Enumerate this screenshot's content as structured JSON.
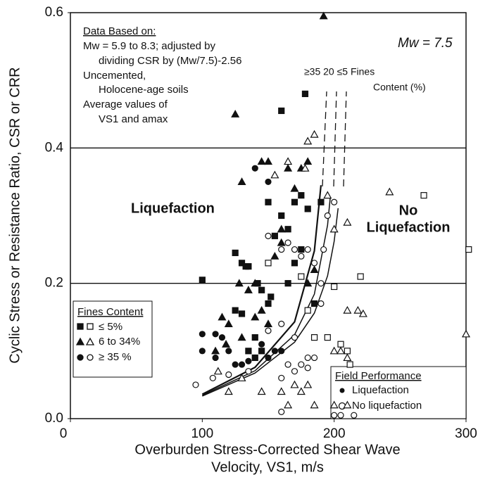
{
  "chart_data": {
    "type": "scatter",
    "x_label": [
      "Overburden Stress-Corrected Shear Wave",
      "Velocity, VS1, m/s"
    ],
    "y_label": "Cyclic Stress or Resistance Ratio, CSR or CRR",
    "xlim": [
      0,
      300
    ],
    "ylim": [
      0,
      0.6
    ],
    "xticks": [
      0,
      100,
      200,
      300
    ],
    "yticks": [
      {
        "value": 0,
        "label": "0.0"
      },
      0.2,
      0.4,
      0.6
    ],
    "grid": true,
    "notes": [
      "Data Based on:",
      "Mw = 5.9 to 8.3; adjusted by",
      "dividing CSR by (Mw/7.5)-2.56",
      "Uncemented,",
      "Holocene-age soils",
      "Average values of",
      "VS1 and amax"
    ],
    "magnitude": "Mw = 7.5",
    "curve_label": [
      "≥35 20 ≤5 Fines",
      "Content (%)"
    ],
    "region_labels": [
      "Liquefaction",
      "No",
      "Liquefaction"
    ],
    "fines_legend": {
      "title": "Fines Content",
      "entries": [
        "≤ 5%",
        "6 to 34%",
        "≥ 35 %"
      ]
    },
    "performance_legend": {
      "title": "Field Performance",
      "entries": [
        "Liquefaction",
        "No liquefaction"
      ]
    },
    "curves": [
      {
        "x": [
          100,
          140,
          170,
          185,
          190
        ],
        "values": [
          0.036,
          0.0758,
          0.143,
          0.248,
          0.345
        ]
      },
      {
        "x": [
          100,
          140,
          170,
          185,
          195,
          197
        ],
        "values": [
          0.0345,
          0.0708,
          0.124,
          0.184,
          0.286,
          0.326
        ]
      },
      {
        "x": [
          100,
          140,
          170,
          185,
          195,
          200,
          203
        ],
        "values": [
          0.0333,
          0.0674,
          0.113,
          0.156,
          0.211,
          0.262,
          0.311
        ]
      }
    ],
    "series": [
      {
        "marker": "square",
        "filled": true,
        "x": [
          100,
          125,
          130,
          133,
          135,
          142,
          150,
          155,
          160,
          165,
          170,
          175,
          180,
          190,
          160,
          178,
          125,
          130,
          140,
          145,
          150,
          152,
          140,
          135,
          145,
          170,
          165,
          185,
          175
        ],
        "values": [
          0.205,
          0.245,
          0.23,
          0.225,
          0.225,
          0.2,
          0.32,
          0.27,
          0.3,
          0.28,
          0.32,
          0.33,
          0.31,
          0.32,
          0.455,
          0.48,
          0.16,
          0.155,
          0.12,
          0.19,
          0.17,
          0.18,
          0.09,
          0.1,
          0.1,
          0.23,
          0.2,
          0.17,
          0.25
        ]
      },
      {
        "marker": "square",
        "filled": false,
        "x": [
          150,
          175,
          180,
          185,
          195,
          200,
          205,
          210,
          212,
          220,
          268,
          302
        ],
        "values": [
          0.23,
          0.21,
          0.16,
          0.12,
          0.12,
          0.195,
          0.11,
          0.1,
          0.08,
          0.21,
          0.33,
          0.25
        ]
      },
      {
        "marker": "triangle",
        "filled": true,
        "x": [
          125,
          192,
          145,
          150,
          165,
          175,
          180,
          130,
          160,
          170,
          115,
          118,
          120,
          128,
          135,
          140,
          145,
          155,
          160,
          150,
          180,
          185,
          130,
          110,
          140
        ],
        "values": [
          0.45,
          0.595,
          0.38,
          0.38,
          0.37,
          0.37,
          0.38,
          0.35,
          0.28,
          0.34,
          0.15,
          0.11,
          0.14,
          0.2,
          0.19,
          0.2,
          0.16,
          0.24,
          0.26,
          0.14,
          0.2,
          0.22,
          0.12,
          0.1,
          0.15
        ]
      },
      {
        "marker": "triangle",
        "filled": false,
        "x": [
          155,
          165,
          178,
          185,
          180,
          195,
          200,
          210,
          200,
          205,
          210,
          218,
          222,
          210,
          242,
          300,
          200,
          210,
          145,
          160,
          170,
          175,
          180,
          165,
          130,
          120,
          112,
          185
        ],
        "values": [
          0.36,
          0.38,
          0.37,
          0.42,
          0.41,
          0.33,
          0.28,
          0.29,
          0.1,
          0.1,
          0.09,
          0.16,
          0.155,
          0.16,
          0.335,
          0.125,
          0.02,
          0.02,
          0.04,
          0.04,
          0.05,
          0.04,
          0.05,
          0.02,
          0.06,
          0.04,
          0.07,
          0.02
        ]
      },
      {
        "marker": "circle",
        "filled": true,
        "x": [
          100,
          100,
          110,
          115,
          120,
          130,
          140,
          145,
          150,
          155,
          140,
          150,
          160,
          110,
          125,
          135
        ],
        "values": [
          0.125,
          0.1,
          0.125,
          0.12,
          0.1,
          0.08,
          0.09,
          0.11,
          0.09,
          0.1,
          0.37,
          0.35,
          0.1,
          0.09,
          0.08,
          0.085
        ]
      },
      {
        "marker": "circle",
        "filled": false,
        "x": [
          95,
          108,
          120,
          135,
          150,
          160,
          165,
          170,
          175,
          180,
          185,
          190,
          192,
          195,
          200,
          160,
          170,
          180,
          185,
          160,
          165,
          170,
          175,
          180,
          160,
          200,
          205,
          215,
          150,
          190
        ],
        "values": [
          0.05,
          0.06,
          0.065,
          0.07,
          0.27,
          0.25,
          0.26,
          0.25,
          0.24,
          0.25,
          0.23,
          0.2,
          0.25,
          0.3,
          0.32,
          0.14,
          0.12,
          0.09,
          0.09,
          0.06,
          0.08,
          0.07,
          0.08,
          0.075,
          0.01,
          0.005,
          0.005,
          0.005,
          0.13,
          0.17
        ]
      }
    ]
  }
}
